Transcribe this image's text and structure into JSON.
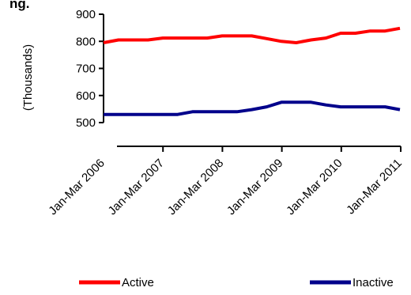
{
  "chart_data": {
    "type": "line",
    "title_fragment": "ng.",
    "ylabel": "(Thousands)",
    "ylim": [
      500,
      900
    ],
    "yticks": [
      "500",
      "600",
      "700",
      "800",
      "900"
    ],
    "x_tick_labels": [
      "Jan-Mar 2006",
      "Jan-Mar 2007",
      "Jan-Mar 2008",
      "Jan-Mar 2009",
      "Jan-Mar 2010",
      "Jan-Mar 2011"
    ],
    "series": [
      {
        "name": "Active",
        "color": "#ff0000",
        "values": [
          795,
          805,
          805,
          805,
          812,
          812,
          812,
          812,
          820,
          820,
          820,
          810,
          800,
          795,
          805,
          812,
          830,
          830,
          838,
          838,
          848
        ]
      },
      {
        "name": "Inactive",
        "color": "#00008b",
        "values": [
          530,
          530,
          530,
          530,
          530,
          530,
          540,
          540,
          540,
          540,
          548,
          558,
          575,
          575,
          575,
          565,
          558,
          558,
          558,
          558,
          548
        ]
      }
    ]
  }
}
